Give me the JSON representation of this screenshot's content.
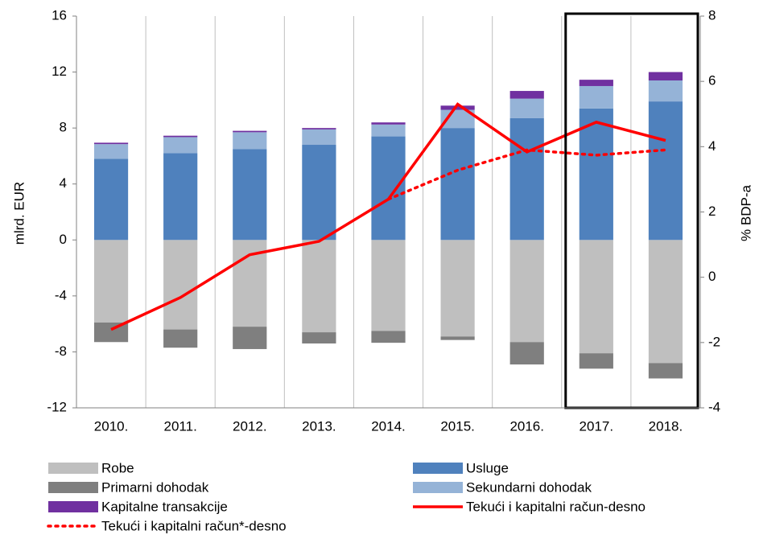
{
  "chart_data": {
    "type": "bar",
    "categories": [
      "2010.",
      "2011.",
      "2012.",
      "2013.",
      "2014.",
      "2015.",
      "2016.",
      "2017.",
      "2018."
    ],
    "y_label": "mlrd. EUR",
    "y2_label": "% BDP-a",
    "ylim": [
      -12,
      16
    ],
    "yticks": [
      -12,
      -8,
      -4,
      0,
      4,
      8,
      12,
      16
    ],
    "y2lim": [
      -4,
      8
    ],
    "y2ticks": [
      -4,
      -2,
      0,
      2,
      4,
      6,
      8
    ],
    "series": [
      {
        "name": "Robe",
        "type": "bar",
        "color": "#bfbfbf",
        "values": [
          -5.9,
          -6.4,
          -6.2,
          -6.6,
          -6.5,
          -6.9,
          -7.3,
          -8.1,
          -8.8
        ]
      },
      {
        "name": "Usluge",
        "type": "bar",
        "color": "#4f81bd",
        "values": [
          5.8,
          6.2,
          6.5,
          6.8,
          7.4,
          8.0,
          8.7,
          9.4,
          9.9
        ]
      },
      {
        "name": "Primarni dohodak",
        "type": "bar",
        "color": "#7f7f7f",
        "values": [
          -1.4,
          -1.3,
          -1.6,
          -0.8,
          -0.85,
          -0.25,
          -1.6,
          -1.1,
          -1.1
        ]
      },
      {
        "name": "Sekundarni dohodak",
        "type": "bar",
        "color": "#95b3d7",
        "values": [
          1.05,
          1.15,
          1.2,
          1.1,
          0.85,
          1.3,
          1.4,
          1.6,
          1.5
        ]
      },
      {
        "name": "Kapitalne transakcije",
        "type": "bar",
        "color": "#7030a0",
        "values": [
          0.1,
          0.1,
          0.1,
          0.1,
          0.15,
          0.3,
          0.55,
          0.45,
          0.6
        ]
      },
      {
        "name": "Tekući i kapitalni račun-desno",
        "type": "line",
        "axis": "y2",
        "color": "#ff0000",
        "values": [
          -1.6,
          -0.62,
          0.69,
          1.1,
          2.39,
          5.3,
          3.84,
          4.75,
          4.19
        ]
      },
      {
        "name": "Tekući i kapitalni račun*-desno",
        "type": "line",
        "axis": "y2",
        "dashed": true,
        "color": "#ff0000",
        "values": [
          null,
          null,
          null,
          null,
          2.39,
          3.28,
          3.9,
          3.74,
          3.9
        ]
      }
    ]
  }
}
